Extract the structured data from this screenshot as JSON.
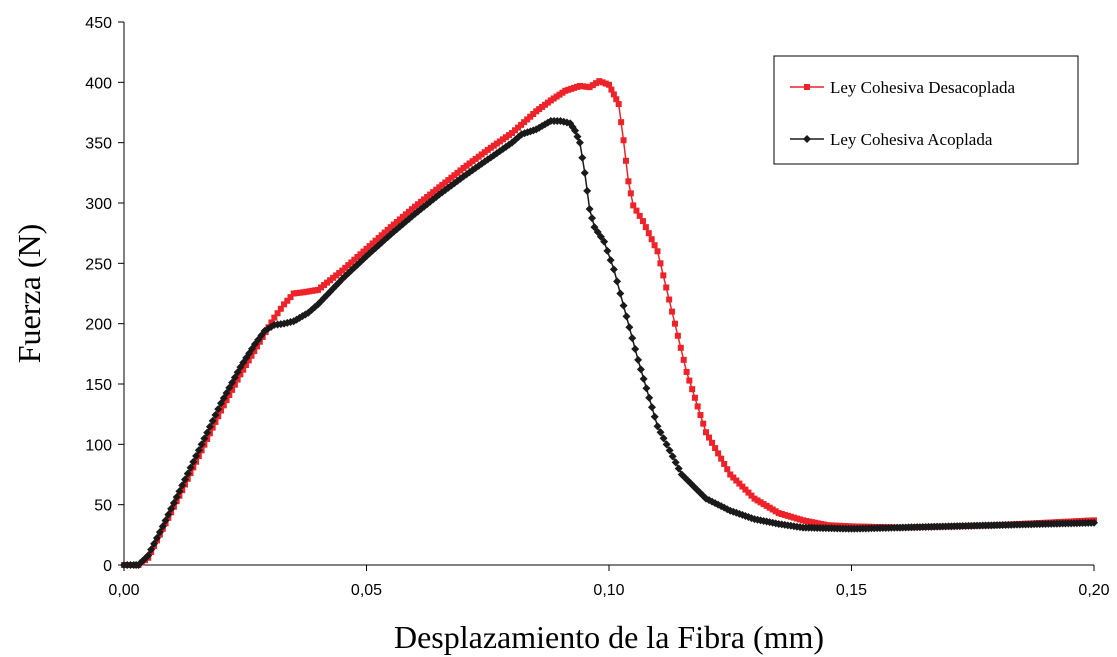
{
  "chart_data": {
    "type": "line",
    "title": "",
    "xlabel": "Desplazamiento de la Fibra (mm)",
    "ylabel": "Fuerza (N)",
    "xlim": [
      0,
      0.2
    ],
    "ylim": [
      0,
      450
    ],
    "x_ticks": [
      "0,00",
      "0,05",
      "0,10",
      "0,15",
      "0,20"
    ],
    "x_tick_values": [
      0,
      0.05,
      0.1,
      0.15,
      0.2
    ],
    "y_ticks": [
      "0",
      "50",
      "100",
      "150",
      "200",
      "250",
      "300",
      "350",
      "400",
      "450"
    ],
    "y_tick_values": [
      0,
      50,
      100,
      150,
      200,
      250,
      300,
      350,
      400,
      450
    ],
    "grid": false,
    "legend_position": "top-right",
    "series": [
      {
        "name": "Ley Cohesiva Desacoplada",
        "color": "#ee2229",
        "marker": "square",
        "points": [
          [
            0,
            0
          ],
          [
            0.002,
            0
          ],
          [
            0.003,
            0
          ],
          [
            0.005,
            6
          ],
          [
            0.008,
            30
          ],
          [
            0.012,
            62
          ],
          [
            0.016,
            95
          ],
          [
            0.02,
            128
          ],
          [
            0.024,
            158
          ],
          [
            0.028,
            185
          ],
          [
            0.031,
            205
          ],
          [
            0.033,
            216
          ],
          [
            0.035,
            225
          ],
          [
            0.037,
            226
          ],
          [
            0.04,
            228
          ],
          [
            0.045,
            244
          ],
          [
            0.05,
            262
          ],
          [
            0.055,
            280
          ],
          [
            0.06,
            297
          ],
          [
            0.065,
            313
          ],
          [
            0.07,
            329
          ],
          [
            0.075,
            344
          ],
          [
            0.08,
            358
          ],
          [
            0.085,
            376
          ],
          [
            0.088,
            385
          ],
          [
            0.091,
            393
          ],
          [
            0.094,
            397
          ],
          [
            0.096,
            396
          ],
          [
            0.098,
            401
          ],
          [
            0.1,
            398
          ],
          [
            0.101,
            390
          ],
          [
            0.102,
            382
          ],
          [
            0.103,
            352
          ],
          [
            0.104,
            318
          ],
          [
            0.105,
            298
          ],
          [
            0.107,
            285
          ],
          [
            0.11,
            260
          ],
          [
            0.113,
            210
          ],
          [
            0.116,
            160
          ],
          [
            0.12,
            110
          ],
          [
            0.125,
            75
          ],
          [
            0.13,
            55
          ],
          [
            0.135,
            43
          ],
          [
            0.14,
            37
          ],
          [
            0.145,
            33
          ],
          [
            0.15,
            32
          ],
          [
            0.16,
            31
          ],
          [
            0.17,
            32
          ],
          [
            0.18,
            33
          ],
          [
            0.19,
            35
          ],
          [
            0.2,
            37
          ]
        ]
      },
      {
        "name": "Ley Cohesiva Acoplada",
        "color": "#1a1a1a",
        "marker": "diamond",
        "points": [
          [
            0,
            0
          ],
          [
            0.002,
            0
          ],
          [
            0.003,
            0
          ],
          [
            0.005,
            8
          ],
          [
            0.008,
            32
          ],
          [
            0.012,
            66
          ],
          [
            0.016,
            100
          ],
          [
            0.02,
            134
          ],
          [
            0.024,
            164
          ],
          [
            0.027,
            183
          ],
          [
            0.029,
            194
          ],
          [
            0.031,
            199
          ],
          [
            0.033,
            200
          ],
          [
            0.035,
            202
          ],
          [
            0.038,
            209
          ],
          [
            0.04,
            216
          ],
          [
            0.045,
            237
          ],
          [
            0.05,
            256
          ],
          [
            0.055,
            274
          ],
          [
            0.06,
            291
          ],
          [
            0.065,
            307
          ],
          [
            0.07,
            322
          ],
          [
            0.075,
            336
          ],
          [
            0.08,
            350
          ],
          [
            0.082,
            357
          ],
          [
            0.085,
            361
          ],
          [
            0.088,
            368
          ],
          [
            0.09,
            368
          ],
          [
            0.092,
            366
          ],
          [
            0.093,
            360
          ],
          [
            0.094,
            350
          ],
          [
            0.095,
            325
          ],
          [
            0.096,
            295
          ],
          [
            0.097,
            280
          ],
          [
            0.099,
            268
          ],
          [
            0.101,
            245
          ],
          [
            0.103,
            215
          ],
          [
            0.106,
            170
          ],
          [
            0.11,
            115
          ],
          [
            0.115,
            75
          ],
          [
            0.12,
            55
          ],
          [
            0.125,
            45
          ],
          [
            0.13,
            38
          ],
          [
            0.135,
            34
          ],
          [
            0.14,
            31
          ],
          [
            0.15,
            30
          ],
          [
            0.16,
            31
          ],
          [
            0.17,
            32
          ],
          [
            0.18,
            33
          ],
          [
            0.19,
            34
          ],
          [
            0.2,
            35
          ]
        ]
      }
    ]
  }
}
